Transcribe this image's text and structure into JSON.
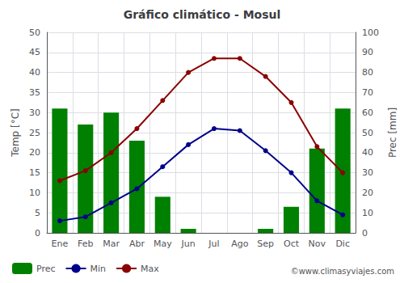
{
  "chart_data": {
    "type": "line",
    "title": "Gráfico climático - Mosul",
    "categories": [
      "Ene",
      "Feb",
      "Mar",
      "Abr",
      "May",
      "Jun",
      "Jul",
      "Ago",
      "Sep",
      "Oct",
      "Nov",
      "Dic"
    ],
    "series": [
      {
        "name": "Prec",
        "type": "bar",
        "axis": "y2",
        "color": "#008000",
        "values": [
          62,
          54,
          60,
          46,
          18,
          2,
          0,
          0,
          2,
          13,
          42,
          62
        ]
      },
      {
        "name": "Min",
        "type": "line",
        "color": "#00008B",
        "marker": "circle",
        "values": [
          3,
          4,
          7.5,
          11,
          16.5,
          22,
          26,
          25.5,
          20.5,
          15,
          8,
          4.5
        ]
      },
      {
        "name": "Max",
        "type": "line",
        "color": "#8B0000",
        "marker": "circle",
        "values": [
          13,
          15.5,
          20,
          26,
          33,
          40,
          43.5,
          43.5,
          39,
          32.5,
          21.5,
          15
        ]
      }
    ],
    "ylabel": "Temp [°C]",
    "y2label": "Prec [mm]",
    "ylim": [
      0,
      50
    ],
    "yticks": [
      0,
      5,
      10,
      15,
      20,
      25,
      30,
      35,
      40,
      45,
      50
    ],
    "y2lim": [
      0,
      100
    ],
    "y2ticks": [
      0,
      10,
      20,
      30,
      40,
      50,
      60,
      70,
      80,
      90,
      100
    ],
    "grid": true,
    "legend": "lower left",
    "annotations": [
      "©www.climasyviajes.com"
    ]
  }
}
